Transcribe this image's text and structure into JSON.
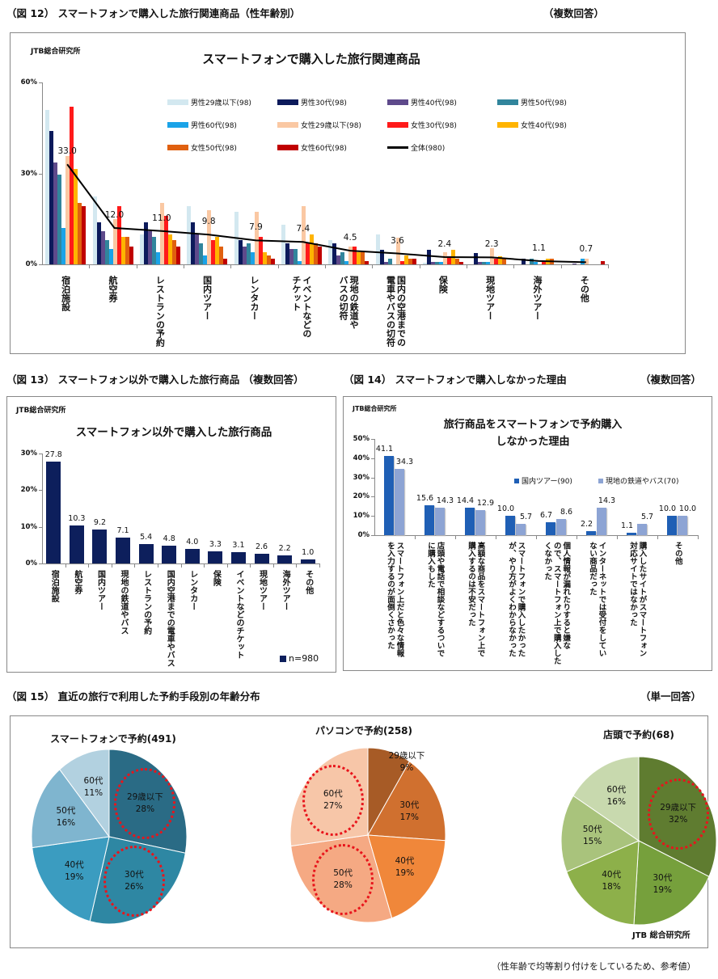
{
  "fig12": {
    "heading": "（図 12） スマートフォンで購入した旅行関連商品（性年齢別）",
    "answer_type": "（複数回答）",
    "source": "JTB総合研究所",
    "chart_data": {
      "type": "bar",
      "title": "スマートフォンで購入した旅行関連商品",
      "ylabel": "",
      "xlabel": "",
      "ylim": [
        0,
        60
      ],
      "yticks": [
        "0%",
        "30%",
        "60%"
      ],
      "categories": [
        "宿泊施設",
        "航空券",
        "レストランの予約",
        "国内ツアー",
        "レンタカー",
        "イベントなどの\nチケット",
        "現地の鉄道や\nバスの切符",
        "国内の空港までの\n電車やバスの切符",
        "保険",
        "現地ツアー",
        "海外ツアー",
        "その他"
      ],
      "series": [
        {
          "name": "男性29歳以下(98)",
          "color": "#d3e8f0",
          "values": [
            51,
            22.4,
            10,
            19.3,
            17.3,
            13,
            8,
            10,
            0.5,
            0,
            0,
            0
          ]
        },
        {
          "name": "男性30代(98)",
          "color": "#0c1a5b",
          "values": [
            44,
            14,
            14,
            14,
            8,
            7,
            7,
            4.9,
            4.9,
            3.8,
            1.8,
            0
          ]
        },
        {
          "name": "男性40代(98)",
          "color": "#5e4a8b",
          "values": [
            33.6,
            11,
            11,
            10,
            6,
            5,
            3,
            0.7,
            0.7,
            0.7,
            0,
            0.4
          ]
        },
        {
          "name": "男性50代(98)",
          "color": "#31859c",
          "values": [
            29.5,
            8,
            9,
            7,
            7,
            5,
            4,
            2,
            0.7,
            0.7,
            1.8,
            0
          ]
        },
        {
          "name": "男性60代(98)",
          "color": "#1aa3e8",
          "values": [
            12,
            5,
            4,
            3,
            4,
            1,
            1,
            0,
            0.7,
            0.7,
            0.7,
            2
          ]
        },
        {
          "name": "女性29歳以下(98)",
          "color": "#fac8a3",
          "values": [
            35.7,
            15,
            20.4,
            18,
            17.3,
            19.3,
            6,
            8.9,
            3.9,
            5.3,
            0,
            2
          ]
        },
        {
          "name": "女性30代(98)",
          "color": "#ff1a1a",
          "values": [
            52,
            19.3,
            16,
            8,
            9,
            7,
            6,
            1,
            2.8,
            1.8,
            0.7,
            0
          ]
        },
        {
          "name": "女性40代(98)",
          "color": "#ffb400",
          "values": [
            31.6,
            9,
            10,
            9,
            4,
            10,
            4,
            3,
            4.9,
            2.8,
            2,
            0
          ]
        },
        {
          "name": "女性50代(98)",
          "color": "#e0600f",
          "values": [
            20.4,
            9,
            8,
            6,
            3,
            7,
            4,
            1.8,
            1.8,
            1.8,
            2,
            0
          ]
        },
        {
          "name": "女性60代(98)",
          "color": "#c00000",
          "values": [
            19.2,
            6,
            6,
            2,
            2,
            6,
            1,
            1.8,
            0.7,
            0,
            0,
            1
          ]
        }
      ],
      "line": {
        "name": "全体(980)",
        "color": "#000000",
        "values": [
          33.0,
          12.0,
          11.0,
          9.8,
          7.9,
          7.4,
          4.5,
          3.6,
          2.4,
          2.3,
          1.1,
          0.7
        ],
        "labels": [
          "33.0",
          "12.0",
          "11.0",
          "9.8",
          "7.9",
          "7.4",
          "4.5",
          "3.6",
          "2.4",
          "2.3",
          "1.1",
          "0.7"
        ]
      },
      "legend_position": "top-right"
    }
  },
  "fig13": {
    "heading": "（図 13） スマートフォン以外で購入した旅行商品 （複数回答）",
    "source": "JTB総合研究所",
    "chart_data": {
      "type": "bar",
      "title": "スマートフォン以外で購入した旅行商品",
      "ylim": [
        0,
        30
      ],
      "yticks": [
        "0%",
        "10%",
        "20%",
        "30%"
      ],
      "categories": [
        "宿泊施設",
        "航空券",
        "国内ツアー",
        "現地の鉄道やバス",
        "レストランの予約",
        "国内空港までの電車やバス",
        "レンタカー",
        "保険",
        "イベントなどのチケット",
        "現地ツアー",
        "海外ツアー",
        "その他"
      ],
      "series": [
        {
          "name": "n=980",
          "color": "#0d1f5c",
          "values": [
            27.8,
            10.3,
            9.2,
            7.1,
            5.4,
            4.8,
            4.0,
            3.3,
            3.1,
            2.6,
            2.2,
            1.0
          ],
          "labels": [
            "27.8",
            "10.3",
            "9.2",
            "7.1",
            "5.4",
            "4.8",
            "4.0",
            "3.3",
            "3.1",
            "2.6",
            "2.2",
            "1.0"
          ]
        }
      ],
      "legend_position": "bottom-right"
    }
  },
  "fig14": {
    "heading": "（図 14） スマートフォンで購入しなかった理由",
    "answer_type": "（複数回答）",
    "source": "JTB総合研究所",
    "chart_data": {
      "type": "bar",
      "title": "旅行商品をスマートフォンで予約購入\nしなかった理由",
      "ylim": [
        0,
        50
      ],
      "yticks": [
        "0%",
        "10%",
        "20%",
        "30%",
        "40%",
        "50%"
      ],
      "categories": [
        "スマートフォン上だと色々な情報\nを入力するのが面倒くさかった",
        "店頭や電話で相談などするついで\nに購入もした",
        "高額な商品をスマートフォン上で\n購入するのは不安だった",
        "スマートフォンで購入したかった\nが、やり方がよくわからなかった",
        "個人情報が漏れたりすると嫌な\nので、スマートフォン上で購入した\nくなかった",
        "インターネットでは受付をしてい\nない商品だった",
        "購入したサイトがスマートフォン\n対応サイトではなかった",
        "その他"
      ],
      "series": [
        {
          "name": "国内ツアー(90)",
          "color": "#1f5fb5",
          "values": [
            41.1,
            15.6,
            14.4,
            10.0,
            6.7,
            2.2,
            1.1,
            10.0
          ],
          "labels": [
            "41.1",
            "15.6",
            "14.4",
            "10.0",
            "6.7",
            "2.2",
            "1.1",
            "10.0"
          ]
        },
        {
          "name": "現地の鉄道やバス(70)",
          "color": "#8da4d4",
          "values": [
            34.3,
            14.3,
            12.9,
            5.7,
            8.6,
            14.3,
            5.7,
            10.0
          ],
          "labels": [
            "34.3",
            "14.3",
            "12.9",
            "5.7",
            "8.6",
            "14.3",
            "5.7",
            "10.0"
          ]
        }
      ],
      "legend_position": "top-right"
    }
  },
  "fig15": {
    "heading": "（図 15） 直近の旅行で利用した予約手段別の年齢分布",
    "answer_type": "（単一回答）",
    "source": "JTB 総合研究所",
    "chart_data": [
      {
        "type": "pie",
        "title": "スマートフォンで予約(491)",
        "labels": [
          "29歳以下",
          "30代",
          "40代",
          "50代",
          "60代"
        ],
        "values": [
          28,
          26,
          19,
          16,
          11
        ],
        "value_labels": [
          "28%",
          "26%",
          "19%",
          "16%",
          "11%"
        ],
        "colors": [
          "#2a6b85",
          "#2e87a3",
          "#3b9cc0",
          "#7fb5cf",
          "#b2d1e0"
        ],
        "highlighted": [
          "29歳以下",
          "30代"
        ]
      },
      {
        "type": "pie",
        "title": "パソコンで予約(258)",
        "labels": [
          "29歳以下",
          "30代",
          "40代",
          "50代",
          "60代"
        ],
        "values": [
          9,
          17,
          19,
          28,
          27
        ],
        "value_labels": [
          "9%",
          "17%",
          "19%",
          "28%",
          "27%"
        ],
        "colors": [
          "#a75b26",
          "#d0702f",
          "#f0873a",
          "#f5a983",
          "#f7c6a8"
        ],
        "highlighted": [
          "50代",
          "60代"
        ]
      },
      {
        "type": "pie",
        "title": "店頭で予約(68)",
        "labels": [
          "29歳以下",
          "30代",
          "40代",
          "50代",
          "60代"
        ],
        "values": [
          32,
          19,
          18,
          15,
          16
        ],
        "value_labels": [
          "32%",
          "19%",
          "18%",
          "15%",
          "16%"
        ],
        "colors": [
          "#5f7c30",
          "#76a03c",
          "#8db04a",
          "#a9c37c",
          "#c8d9ae"
        ],
        "highlighted": [
          "29歳以下"
        ]
      }
    ]
  },
  "footnote": "（性年齢で均等割り付けをしているため、参考値）"
}
